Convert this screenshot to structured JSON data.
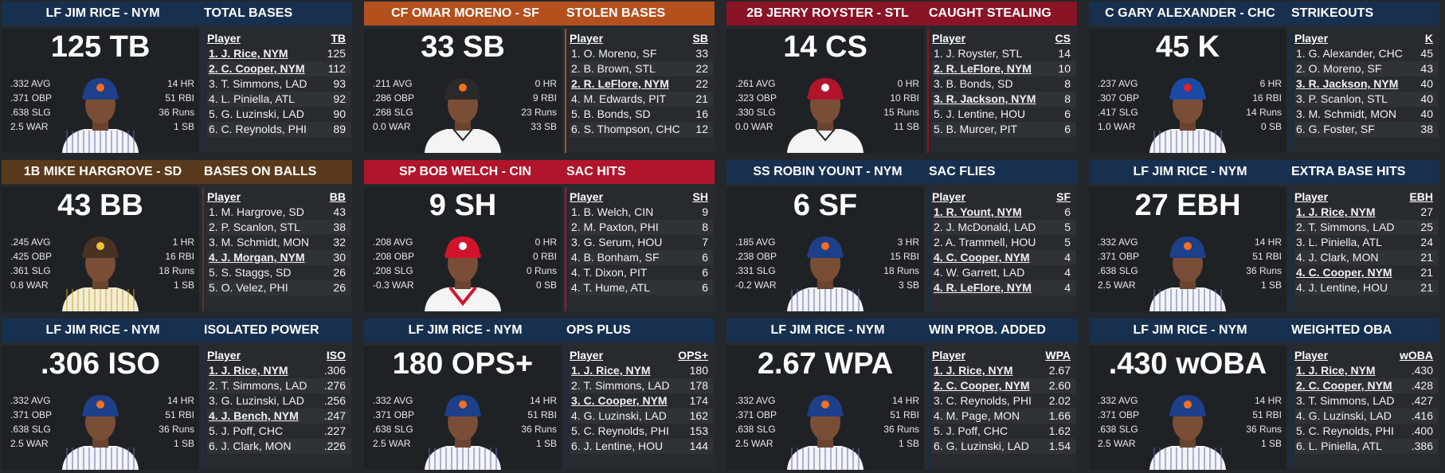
{
  "cards": [
    {
      "player_label": "LF JIM RICE - NYM",
      "stat_title": "TOTAL BASES",
      "color": "#17304f",
      "big_value": "125 TB",
      "season_stats": [
        "14 HR",
        "51 RBI",
        "36 Runs",
        "1 SB"
      ],
      "rate_stats": [
        ".332 AVG",
        ".371 OBP",
        ".638 SLG",
        "2.5 WAR"
      ],
      "cap": "NY mets cap",
      "uniform": "pinstripe",
      "col_player": "Player",
      "col_stat": "TB",
      "rows": [
        {
          "name": "1. J. Rice, NYM",
          "val": "125",
          "hl": true
        },
        {
          "name": "2. C. Cooper, NYM",
          "val": "112",
          "hl": true
        },
        {
          "name": "3. T. Simmons, LAD",
          "val": "93",
          "hl": false
        },
        {
          "name": "4. L. Piniella, ATL",
          "val": "92",
          "hl": false
        },
        {
          "name": "5. G. Luzinski, LAD",
          "val": "90",
          "hl": false
        },
        {
          "name": "6. C. Reynolds, PHI",
          "val": "89",
          "hl": false
        }
      ]
    },
    {
      "player_label": "CF OMAR MORENO - SF",
      "stat_title": "STOLEN BASES",
      "color": "#b4501e",
      "big_value": "33 SB",
      "season_stats": [
        "0 HR",
        "9 RBI",
        "23 Runs",
        "33 SB"
      ],
      "rate_stats": [
        ".211 AVG",
        ".286 OBP",
        ".268 SLG",
        "0.0 WAR"
      ],
      "cap": "SF cap",
      "uniform": "white",
      "col_player": "Player",
      "col_stat": "SB",
      "rows": [
        {
          "name": "1. O. Moreno, SF",
          "val": "33",
          "hl": false
        },
        {
          "name": "2. B. Brown, STL",
          "val": "22",
          "hl": false
        },
        {
          "name": "2. R. LeFlore, NYM",
          "val": "22",
          "hl": true
        },
        {
          "name": "4. M. Edwards, PIT",
          "val": "21",
          "hl": false
        },
        {
          "name": "5. B. Bonds, SD",
          "val": "16",
          "hl": false
        },
        {
          "name": "6. S. Thompson, CHC",
          "val": "12",
          "hl": false
        }
      ]
    },
    {
      "player_label": "2B JERRY ROYSTER - STL",
      "stat_title": "CAUGHT STEALING",
      "color": "#8a1325",
      "big_value": "14 CS",
      "season_stats": [
        "0 HR",
        "10 RBI",
        "15 Runs",
        "11 SB"
      ],
      "rate_stats": [
        ".261 AVG",
        ".323 OBP",
        ".330 SLG",
        "0.0 WAR"
      ],
      "cap": "STL cap",
      "uniform": "white",
      "col_player": "Player",
      "col_stat": "CS",
      "rows": [
        {
          "name": "1. J. Royster, STL",
          "val": "14",
          "hl": false
        },
        {
          "name": "2. R. LeFlore, NYM",
          "val": "10",
          "hl": true
        },
        {
          "name": "3. B. Bonds, SD",
          "val": "8",
          "hl": false
        },
        {
          "name": "3. R. Jackson, NYM",
          "val": "8",
          "hl": true
        },
        {
          "name": "5. J. Lentine, HOU",
          "val": "6",
          "hl": false
        },
        {
          "name": "5. B. Murcer, PIT",
          "val": "6",
          "hl": false
        }
      ]
    },
    {
      "player_label": "C GARY ALEXANDER - CHC",
      "stat_title": "STRIKEOUTS",
      "color": "#17304f",
      "big_value": "45 K",
      "season_stats": [
        "6 HR",
        "16 RBI",
        "14 Runs",
        "0 SB"
      ],
      "rate_stats": [
        ".237 AVG",
        ".307 OBP",
        ".417 SLG",
        "1.0 WAR"
      ],
      "cap": "CHC cap",
      "uniform": "pinstripe",
      "col_player": "Player",
      "col_stat": "K",
      "rows": [
        {
          "name": "1. G. Alexander, CHC",
          "val": "45",
          "hl": false
        },
        {
          "name": "2. O. Moreno, SF",
          "val": "43",
          "hl": false
        },
        {
          "name": "3. R. Jackson, NYM",
          "val": "40",
          "hl": true
        },
        {
          "name": "3. P. Scanlon, STL",
          "val": "40",
          "hl": false
        },
        {
          "name": "3. M. Schmidt, MON",
          "val": "40",
          "hl": false
        },
        {
          "name": "6. G. Foster, SF",
          "val": "38",
          "hl": false
        }
      ]
    },
    {
      "player_label": "1B MIKE HARGROVE - SD",
      "stat_title": "BASES ON BALLS",
      "color": "#5a3a1c",
      "big_value": "43 BB",
      "season_stats": [
        "1 HR",
        "16 RBI",
        "18 Runs",
        "1 SB"
      ],
      "rate_stats": [
        ".245 AVG",
        ".425 OBP",
        ".361 SLG",
        "0.8 WAR"
      ],
      "cap": "SD cap",
      "uniform": "gold-pinstripe",
      "col_player": "Player",
      "col_stat": "BB",
      "rows": [
        {
          "name": "1. M. Hargrove, SD",
          "val": "43",
          "hl": false
        },
        {
          "name": "2. P. Scanlon, STL",
          "val": "38",
          "hl": false
        },
        {
          "name": "3. M. Schmidt, MON",
          "val": "32",
          "hl": false
        },
        {
          "name": "4. J. Morgan, NYM",
          "val": "30",
          "hl": true
        },
        {
          "name": "5. S. Staggs, SD",
          "val": "26",
          "hl": false
        },
        {
          "name": "5. O. Velez, PHI",
          "val": "26",
          "hl": false
        }
      ]
    },
    {
      "player_label": "SP BOB WELCH - CIN",
      "stat_title": "SAC HITS",
      "color": "#b0152c",
      "big_value": "9 SH",
      "season_stats": [
        "0 HR",
        "0 RBI",
        "0 Runs",
        "0 SB"
      ],
      "rate_stats": [
        ".208 AVG",
        ".208 OBP",
        ".208 SLG",
        "-0.3 WAR"
      ],
      "cap": "CIN cap",
      "uniform": "white-red",
      "col_player": "Player",
      "col_stat": "SH",
      "rows": [
        {
          "name": "1. B. Welch, CIN",
          "val": "9",
          "hl": false
        },
        {
          "name": "2. M. Paxton, PHI",
          "val": "8",
          "hl": false
        },
        {
          "name": "3. G. Serum, HOU",
          "val": "7",
          "hl": false
        },
        {
          "name": "4. B. Bonham, SF",
          "val": "6",
          "hl": false
        },
        {
          "name": "4. T. Dixon, PIT",
          "val": "6",
          "hl": false
        },
        {
          "name": "4. T. Hume, ATL",
          "val": "6",
          "hl": false
        }
      ]
    },
    {
      "player_label": "SS ROBIN YOUNT - NYM",
      "stat_title": "SAC FLIES",
      "color": "#17304f",
      "big_value": "6 SF",
      "season_stats": [
        "3 HR",
        "15 RBI",
        "18 Runs",
        "3 SB"
      ],
      "rate_stats": [
        ".185 AVG",
        ".238 OBP",
        ".331 SLG",
        "-0.2 WAR"
      ],
      "cap": "NY mets cap",
      "uniform": "pinstripe",
      "col_player": "Player",
      "col_stat": "SF",
      "rows": [
        {
          "name": "1. R. Yount, NYM",
          "val": "6",
          "hl": true
        },
        {
          "name": "2. J. McDonald, LAD",
          "val": "5",
          "hl": false
        },
        {
          "name": "2. A. Trammell, HOU",
          "val": "5",
          "hl": false
        },
        {
          "name": "4. C. Cooper, NYM",
          "val": "4",
          "hl": true
        },
        {
          "name": "4. W. Garrett, LAD",
          "val": "4",
          "hl": false
        },
        {
          "name": "4. R. LeFlore, NYM",
          "val": "4",
          "hl": true
        }
      ]
    },
    {
      "player_label": "LF JIM RICE - NYM",
      "stat_title": "EXTRA BASE HITS",
      "color": "#17304f",
      "big_value": "27 EBH",
      "season_stats": [
        "14 HR",
        "51 RBI",
        "36 Runs",
        "1 SB"
      ],
      "rate_stats": [
        ".332 AVG",
        ".371 OBP",
        ".638 SLG",
        "2.5 WAR"
      ],
      "cap": "NY mets cap",
      "uniform": "pinstripe",
      "col_player": "Player",
      "col_stat": "EBH",
      "rows": [
        {
          "name": "1. J. Rice, NYM",
          "val": "27",
          "hl": true
        },
        {
          "name": "2. T. Simmons, LAD",
          "val": "25",
          "hl": false
        },
        {
          "name": "3. L. Piniella, ATL",
          "val": "24",
          "hl": false
        },
        {
          "name": "4. J. Clark, MON",
          "val": "21",
          "hl": false
        },
        {
          "name": "4. C. Cooper, NYM",
          "val": "21",
          "hl": true
        },
        {
          "name": "4. J. Lentine, HOU",
          "val": "21",
          "hl": false
        }
      ]
    },
    {
      "player_label": "LF JIM RICE - NYM",
      "stat_title": "ISOLATED POWER",
      "color": "#17304f",
      "big_value": ".306 ISO",
      "season_stats": [
        "14 HR",
        "51 RBI",
        "36 Runs",
        "1 SB"
      ],
      "rate_stats": [
        ".332 AVG",
        ".371 OBP",
        ".638 SLG",
        "2.5 WAR"
      ],
      "cap": "NY mets cap",
      "uniform": "pinstripe",
      "col_player": "Player",
      "col_stat": "ISO",
      "rows": [
        {
          "name": "1. J. Rice, NYM",
          "val": ".306",
          "hl": true
        },
        {
          "name": "2. T. Simmons, LAD",
          "val": ".276",
          "hl": false
        },
        {
          "name": "3. G. Luzinski, LAD",
          "val": ".256",
          "hl": false
        },
        {
          "name": "4. J. Bench, NYM",
          "val": ".247",
          "hl": true
        },
        {
          "name": "5. J. Poff, CHC",
          "val": ".227",
          "hl": false
        },
        {
          "name": "6. J. Clark, MON",
          "val": ".226",
          "hl": false
        }
      ]
    },
    {
      "player_label": "LF JIM RICE - NYM",
      "stat_title": "OPS PLUS",
      "color": "#17304f",
      "big_value": "180 OPS+",
      "season_stats": [
        "14 HR",
        "51 RBI",
        "36 Runs",
        "1 SB"
      ],
      "rate_stats": [
        ".332 AVG",
        ".371 OBP",
        ".638 SLG",
        "2.5 WAR"
      ],
      "cap": "NY mets cap",
      "uniform": "pinstripe",
      "col_player": "Player",
      "col_stat": "OPS+",
      "rows": [
        {
          "name": "1. J. Rice, NYM",
          "val": "180",
          "hl": true
        },
        {
          "name": "2. T. Simmons, LAD",
          "val": "178",
          "hl": false
        },
        {
          "name": "3. C. Cooper, NYM",
          "val": "174",
          "hl": true
        },
        {
          "name": "4. G. Luzinski, LAD",
          "val": "162",
          "hl": false
        },
        {
          "name": "5. C. Reynolds, PHI",
          "val": "153",
          "hl": false
        },
        {
          "name": "6. J. Lentine, HOU",
          "val": "144",
          "hl": false
        }
      ]
    },
    {
      "player_label": "LF JIM RICE - NYM",
      "stat_title": "WIN PROB. ADDED",
      "color": "#17304f",
      "big_value": "2.67 WPA",
      "season_stats": [
        "14 HR",
        "51 RBI",
        "36 Runs",
        "1 SB"
      ],
      "rate_stats": [
        ".332 AVG",
        ".371 OBP",
        ".638 SLG",
        "2.5 WAR"
      ],
      "cap": "NY mets cap",
      "uniform": "pinstripe",
      "col_player": "Player",
      "col_stat": "WPA",
      "rows": [
        {
          "name": "1. J. Rice, NYM",
          "val": "2.67",
          "hl": true
        },
        {
          "name": "2. C. Cooper, NYM",
          "val": "2.60",
          "hl": true
        },
        {
          "name": "3. C. Reynolds, PHI",
          "val": "2.02",
          "hl": false
        },
        {
          "name": "4. M. Page, MON",
          "val": "1.66",
          "hl": false
        },
        {
          "name": "5. J. Poff, CHC",
          "val": "1.62",
          "hl": false
        },
        {
          "name": "6. G. Luzinski, LAD",
          "val": "1.54",
          "hl": false
        }
      ]
    },
    {
      "player_label": "LF JIM RICE - NYM",
      "stat_title": "WEIGHTED OBA",
      "color": "#17304f",
      "big_value": ".430 wOBA",
      "season_stats": [
        "14 HR",
        "51 RBI",
        "36 Runs",
        "1 SB"
      ],
      "rate_stats": [
        ".332 AVG",
        ".371 OBP",
        ".638 SLG",
        "2.5 WAR"
      ],
      "cap": "NY mets cap",
      "uniform": "pinstripe",
      "col_player": "Player",
      "col_stat": "wOBA",
      "rows": [
        {
          "name": "1. J. Rice, NYM",
          "val": ".430",
          "hl": true
        },
        {
          "name": "2. C. Cooper, NYM",
          "val": ".428",
          "hl": true
        },
        {
          "name": "3. T. Simmons, LAD",
          "val": ".427",
          "hl": false
        },
        {
          "name": "4. G. Luzinski, LAD",
          "val": ".416",
          "hl": false
        },
        {
          "name": "5. C. Reynolds, PHI",
          "val": ".400",
          "hl": false
        },
        {
          "name": "6. L. Piniella, ATL",
          "val": ".386",
          "hl": false
        }
      ]
    }
  ]
}
